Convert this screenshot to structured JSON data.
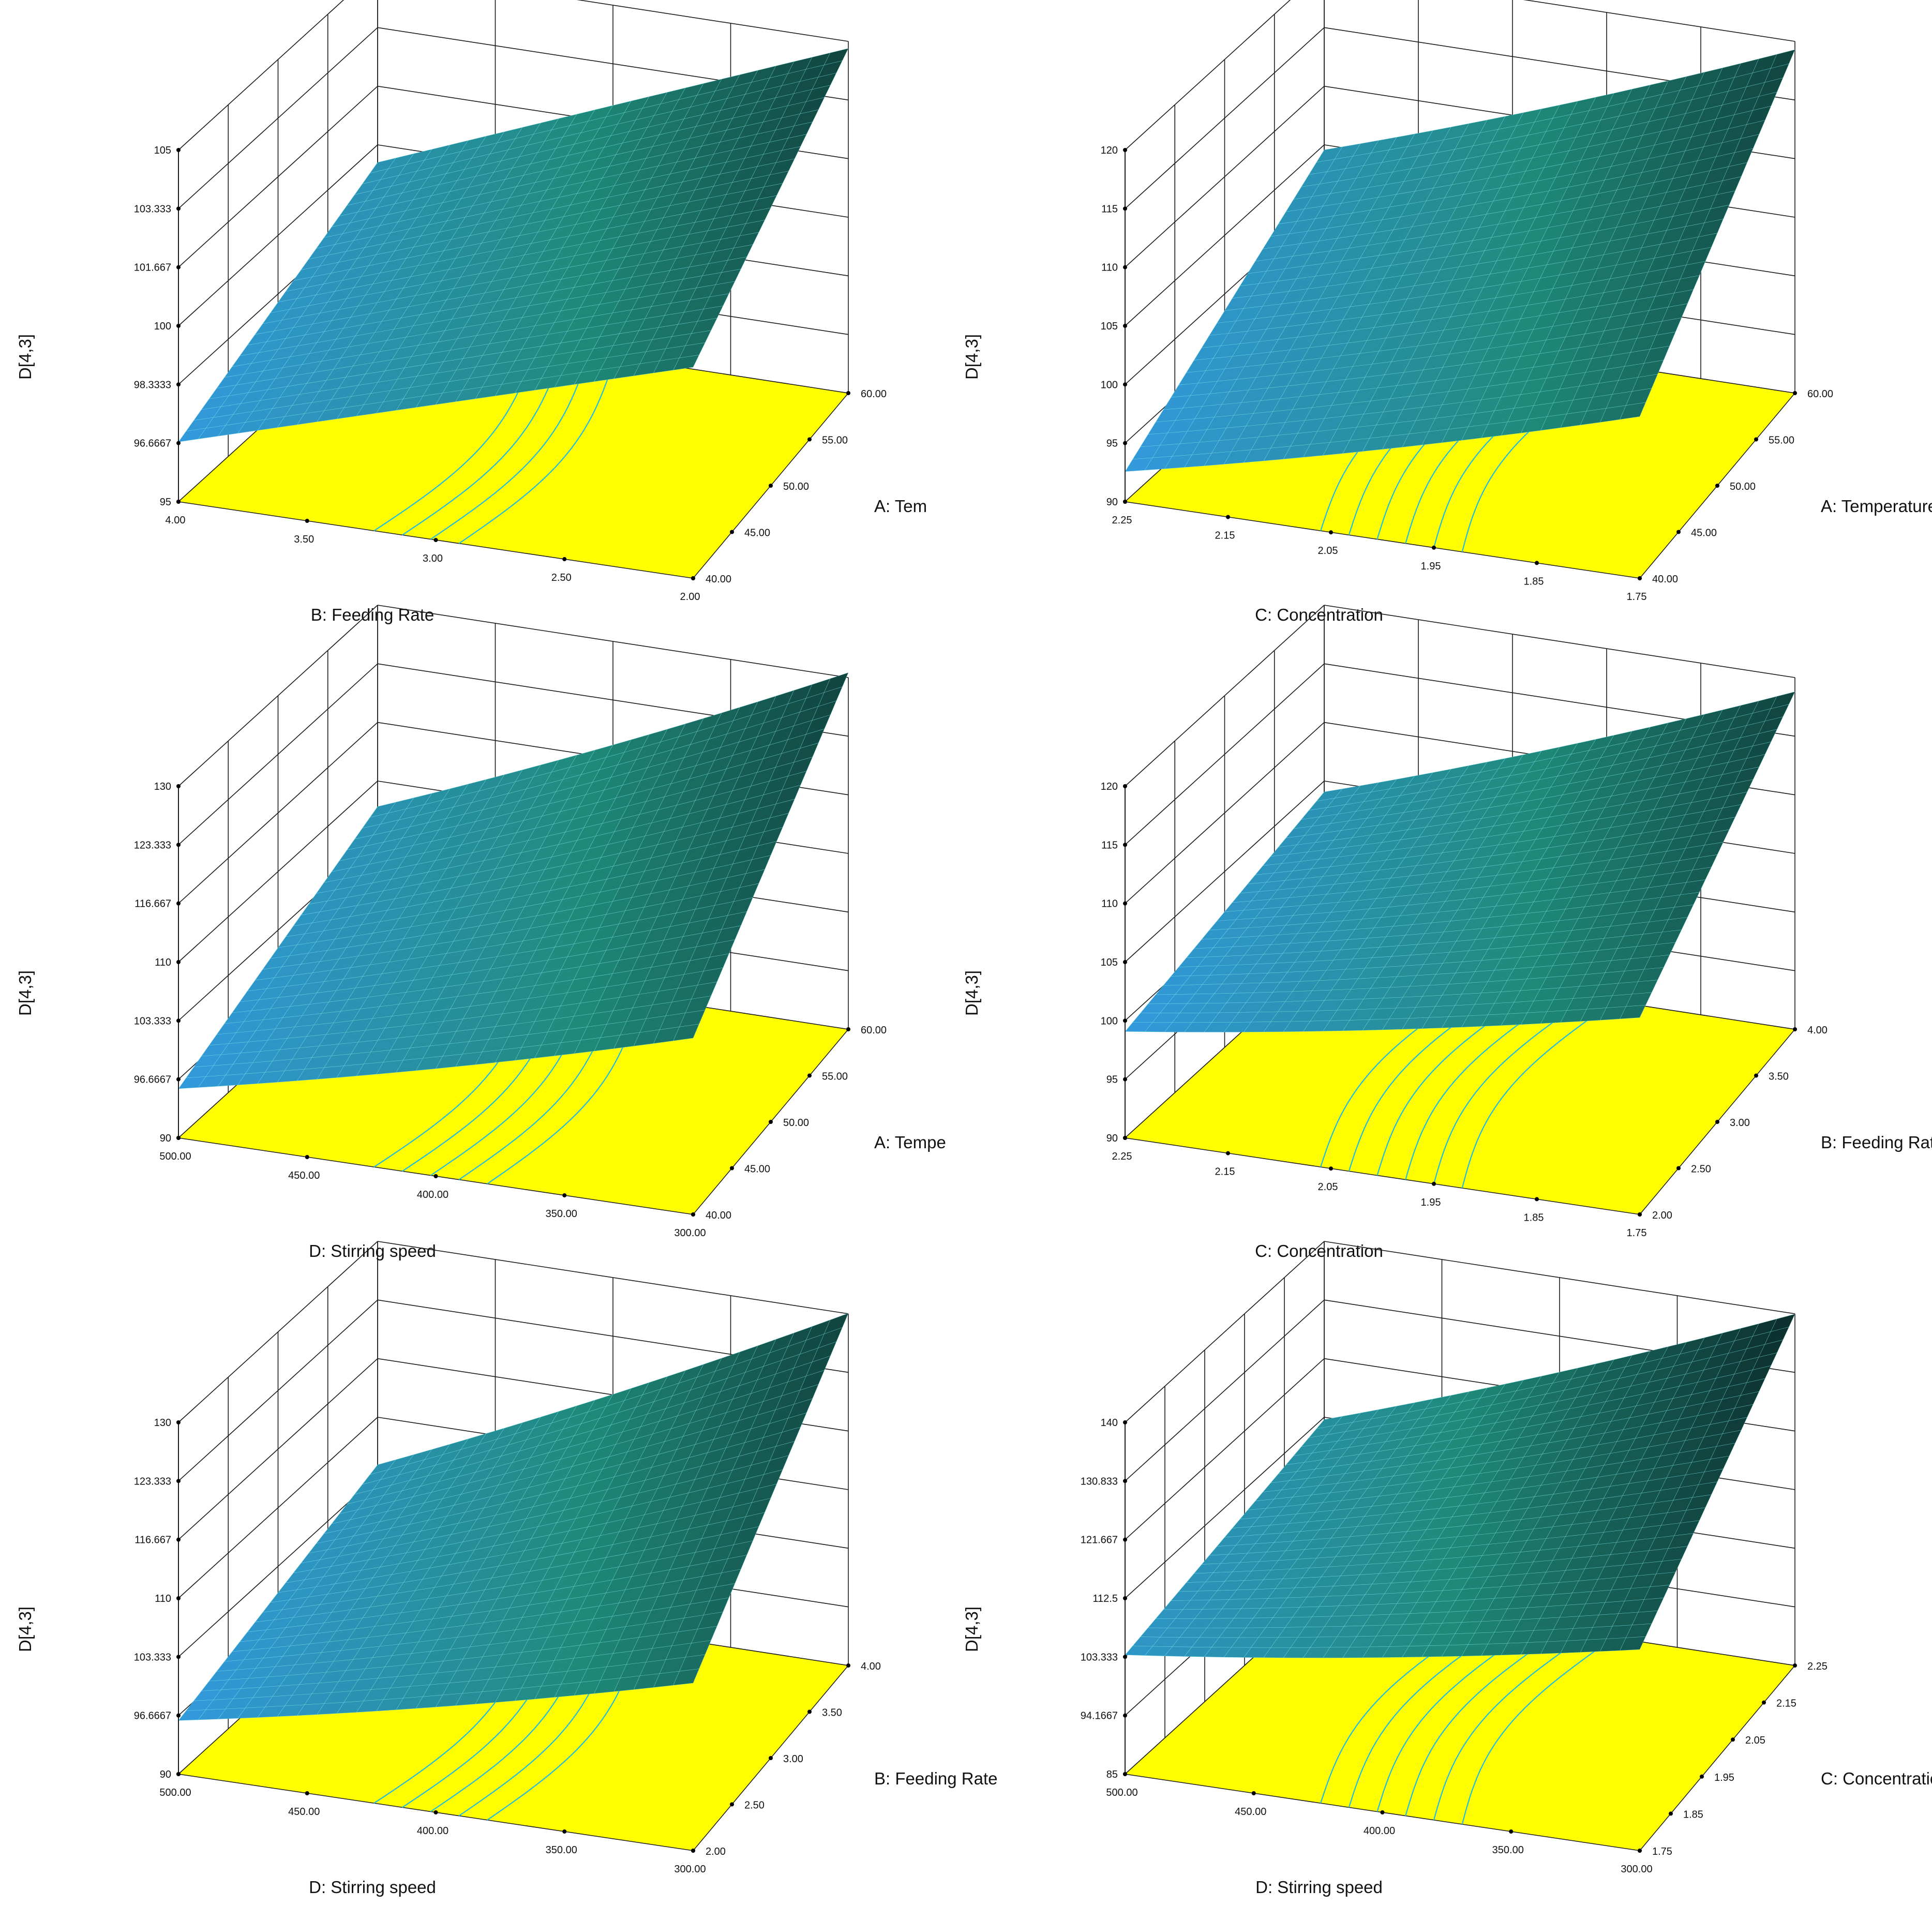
{
  "colors": {
    "floor": "#ffff00",
    "contour": "#22bbdd",
    "grid": "#1a1a1a",
    "mesh": "#7fe7ef",
    "surface_low": "#3399dd",
    "surface_mid": "#1f8a7a",
    "surface_high": "#0a2222"
  },
  "panels": [
    {
      "id": "p1",
      "chart_data": {
        "type": "surface3d",
        "zlabel": "D[4,3]",
        "zticks": [
          "95",
          "96.6667",
          "98.3333",
          "100",
          "101.667",
          "103.333",
          "105"
        ],
        "ylim": [
          95,
          105
        ],
        "front_axis": {
          "label": "B: Feeding Rate",
          "ticks": [
            "4.00",
            "3.50",
            "3.00",
            "2.50",
            "2.00"
          ]
        },
        "side_axis": {
          "label": "A: Tem",
          "ticks": [
            "40.00",
            "45.00",
            "50.00",
            "55.00",
            "60.00"
          ]
        },
        "surface_corners": {
          "front_left": 96.7,
          "front_right": 101.0,
          "back_left": 99.5,
          "back_right": 104.8
        },
        "contour_count": 4
      }
    },
    {
      "id": "p2",
      "chart_data": {
        "type": "surface3d",
        "zlabel": "D[4,3]",
        "zticks": [
          "90",
          "95",
          "100",
          "105",
          "110",
          "115",
          "120"
        ],
        "ylim": [
          90,
          120
        ],
        "front_axis": {
          "label": "C: Concentration",
          "ticks": [
            "2.25",
            "2.15",
            "2.05",
            "1.95",
            "1.85",
            "1.75"
          ]
        },
        "side_axis": {
          "label": "A: Temperature",
          "ticks": [
            "40.00",
            "45.00",
            "50.00",
            "55.00",
            "60.00"
          ]
        },
        "surface_corners": {
          "front_left": 92.5,
          "front_right": 103.0,
          "back_left": 104.5,
          "back_right": 118.5
        },
        "contour_count": 6
      }
    },
    {
      "id": "p3",
      "chart_data": {
        "type": "surface3d",
        "zlabel": "D[4,3]",
        "zticks": [
          "90",
          "96.6667",
          "103.333",
          "110",
          "116.667",
          "123.333",
          "130"
        ],
        "ylim": [
          90,
          130
        ],
        "front_axis": {
          "label": "D: Stirring speed",
          "ticks": [
            "500.00",
            "450.00",
            "400.00",
            "350.00",
            "300.00"
          ]
        },
        "side_axis": {
          "label": "A: Tempe",
          "ticks": [
            "40.00",
            "45.00",
            "50.00",
            "55.00",
            "60.00"
          ]
        },
        "surface_corners": {
          "front_left": 95.5,
          "front_right": 109.0,
          "back_left": 107.0,
          "back_right": 129.5
        },
        "contour_count": 5
      }
    },
    {
      "id": "p4",
      "chart_data": {
        "type": "surface3d",
        "zlabel": "D[4,3]",
        "zticks": [
          "90",
          "95",
          "100",
          "105",
          "110",
          "115",
          "120"
        ],
        "ylim": [
          90,
          120
        ],
        "front_axis": {
          "label": "C: Concentration",
          "ticks": [
            "2.25",
            "2.15",
            "2.05",
            "1.95",
            "1.85",
            "1.75"
          ]
        },
        "side_axis": {
          "label": "B: Feeding Rate",
          "ticks": [
            "2.00",
            "2.50",
            "3.00",
            "3.50",
            "4.00"
          ]
        },
        "surface_corners": {
          "front_left": 99.0,
          "front_right": 106.0,
          "back_left": 104.0,
          "back_right": 118.0
        },
        "contour_count": 6
      }
    },
    {
      "id": "p5",
      "chart_data": {
        "type": "surface3d",
        "zlabel": "D[4,3]",
        "zticks": [
          "90",
          "96.6667",
          "103.333",
          "110",
          "116.667",
          "123.333",
          "130"
        ],
        "ylim": [
          90,
          130
        ],
        "front_axis": {
          "label": "D: Stirring speed",
          "ticks": [
            "500.00",
            "450.00",
            "400.00",
            "350.00",
            "300.00"
          ]
        },
        "side_axis": {
          "label": "B: Feeding Rate",
          "ticks": [
            "2.00",
            "2.50",
            "3.00",
            "3.50",
            "4.00"
          ]
        },
        "surface_corners": {
          "front_left": 96.0,
          "front_right": 108.0,
          "back_left": 104.5,
          "back_right": 129.0
        },
        "contour_count": 5
      }
    },
    {
      "id": "p6",
      "chart_data": {
        "type": "surface3d",
        "zlabel": "D[4,3]",
        "zticks": [
          "85",
          "94.1667",
          "103.333",
          "112.5",
          "121.667",
          "130.833",
          "140"
        ],
        "ylim": [
          85,
          140
        ],
        "front_axis": {
          "label": "D: Stirring speed",
          "ticks": [
            "500.00",
            "450.00",
            "400.00",
            "350.00",
            "300.00"
          ]
        },
        "side_axis": {
          "label": "C: Concentration",
          "ticks": [
            "1.75",
            "1.85",
            "1.95",
            "2.05",
            "2.15",
            "2.25"
          ]
        },
        "surface_corners": {
          "front_left": 103.5,
          "front_right": 115.0,
          "back_left": 112.0,
          "back_right": 138.5
        },
        "contour_count": 6
      }
    }
  ]
}
